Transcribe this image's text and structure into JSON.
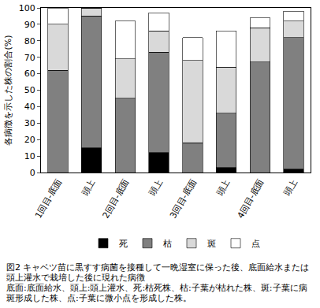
{
  "chart_data": {
    "type": "bar",
    "stacked": true,
    "y_label": "各病徴を示した株の割合(%)",
    "categories": [
      "1回目-底面",
      "頭上",
      "2回目-底面",
      "頭上",
      "3回目-底面",
      "頭上",
      "4回目-底面",
      "頭上"
    ],
    "series": [
      {
        "name": "死",
        "color": "#000000",
        "values": [
          0,
          15,
          0,
          12,
          0,
          3,
          0,
          2
        ]
      },
      {
        "name": "枯",
        "color": "#808080",
        "values": [
          62,
          80,
          45,
          61,
          18,
          33,
          67,
          80
        ]
      },
      {
        "name": "斑",
        "color": "#d9d9d9",
        "values": [
          28,
          5,
          24,
          13,
          50,
          28,
          21,
          10
        ]
      },
      {
        "name": "点",
        "color": "#ffffff",
        "values": [
          10,
          0,
          23,
          11,
          14,
          22,
          6,
          6
        ]
      }
    ],
    "ylim": [
      0,
      100
    ],
    "yticks": [
      0,
      10,
      20,
      30,
      40,
      50,
      60,
      70,
      80,
      90,
      100
    ],
    "grid": false,
    "legend": "bottom",
    "caption": [
      "図2 キャベツ苗に黒すす病菌を接種して一晩湿室に保った後、底面給水または頭上灌水で栽培した後に現れた病徴",
      "底面:底面給水、頭上:頭上灌水、死:枯死株、枯:子葉が枯れた株、斑:子葉に病斑形成した株、点:子葉に微小点を形成した株。"
    ]
  }
}
